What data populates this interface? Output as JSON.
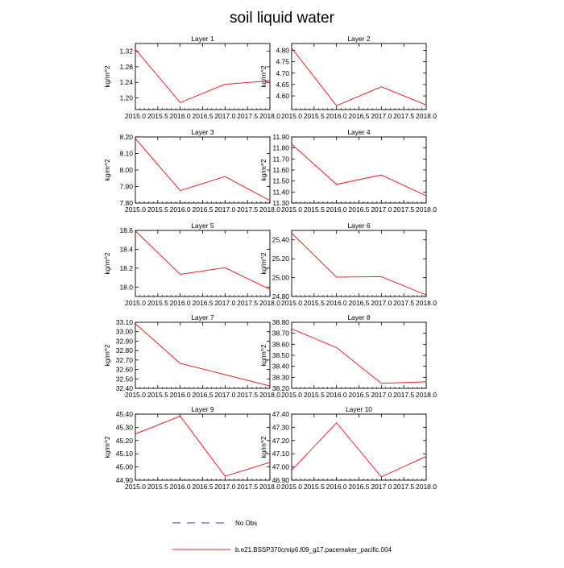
{
  "title": "soil liquid water",
  "colors": {
    "model_line": "#e8202a",
    "obs_line": "#3b3b8f",
    "axis": "#000000"
  },
  "legend": [
    {
      "label": "No Obs",
      "style": "dashed",
      "color": "#3b3b8f"
    },
    {
      "label": "b.e21.BSSP370cmip6.f09_g17.pacemaker_pacific.004",
      "style": "solid",
      "color": "#e8202a"
    }
  ],
  "chart_data": [
    {
      "type": "line",
      "title": "Layer 1",
      "ylabel": "kg/m^2",
      "x": [
        2015.0,
        2016.0,
        2017.0,
        2018.0
      ],
      "y": [
        1.325,
        1.188,
        1.235,
        1.244
      ],
      "xlim": [
        2015.0,
        2018.0
      ],
      "ylim": [
        1.17,
        1.34
      ],
      "xticks": [
        "2015.0",
        "2015.5",
        "2016.0",
        "2016.5",
        "2017.0",
        "2017.5",
        "2018.0"
      ],
      "yticks": [
        {
          "v": 1.2,
          "l": "1.20"
        },
        {
          "v": 1.24,
          "l": "1.24"
        },
        {
          "v": 1.28,
          "l": "1.28"
        },
        {
          "v": 1.32,
          "l": "1.32"
        }
      ]
    },
    {
      "type": "line",
      "title": "Layer 2",
      "ylabel": "kg/m^2",
      "x": [
        2015.0,
        2016.0,
        2017.0,
        2018.0
      ],
      "y": [
        4.81,
        4.557,
        4.64,
        4.56
      ],
      "xlim": [
        2015.0,
        2018.0
      ],
      "ylim": [
        4.54,
        4.83
      ],
      "xticks": [
        "2015.0",
        "2015.5",
        "2016.0",
        "2016.5",
        "2017.0",
        "2017.5",
        "2018.0"
      ],
      "yticks": [
        {
          "v": 4.6,
          "l": "4.60"
        },
        {
          "v": 4.65,
          "l": "4.65"
        },
        {
          "v": 4.7,
          "l": "4.70"
        },
        {
          "v": 4.75,
          "l": "4.75"
        },
        {
          "v": 4.8,
          "l": "4.80"
        }
      ]
    },
    {
      "type": "line",
      "title": "Layer 3",
      "ylabel": "kg/m^2",
      "x": [
        2015.0,
        2016.0,
        2017.0,
        2018.0
      ],
      "y": [
        8.19,
        7.875,
        7.96,
        7.815
      ],
      "xlim": [
        2015.0,
        2018.0
      ],
      "ylim": [
        7.8,
        8.2
      ],
      "xticks": [
        "2015.0",
        "2015.5",
        "2016.0",
        "2016.5",
        "2017.0",
        "2017.5",
        "2018.0"
      ],
      "yticks": [
        {
          "v": 7.8,
          "l": "7.80"
        },
        {
          "v": 7.9,
          "l": "7.90"
        },
        {
          "v": 8.0,
          "l": "8.00"
        },
        {
          "v": 8.1,
          "l": "8.10"
        },
        {
          "v": 8.2,
          "l": "8.20"
        }
      ]
    },
    {
      "type": "line",
      "title": "Layer 4",
      "ylabel": "kg/m^2",
      "x": [
        2015.0,
        2016.0,
        2017.0,
        2018.0
      ],
      "y": [
        11.835,
        11.47,
        11.555,
        11.365
      ],
      "xlim": [
        2015.0,
        2018.0
      ],
      "ylim": [
        11.3,
        11.9
      ],
      "xticks": [
        "2015.0",
        "2015.5",
        "2016.0",
        "2016.5",
        "2017.0",
        "2017.5",
        "2018.0"
      ],
      "yticks": [
        {
          "v": 11.3,
          "l": "11.30"
        },
        {
          "v": 11.4,
          "l": "11.40"
        },
        {
          "v": 11.5,
          "l": "11.50"
        },
        {
          "v": 11.6,
          "l": "11.60"
        },
        {
          "v": 11.7,
          "l": "11.70"
        },
        {
          "v": 11.8,
          "l": "11.80"
        },
        {
          "v": 11.9,
          "l": "11.90"
        }
      ]
    },
    {
      "type": "line",
      "title": "Layer 5",
      "ylabel": "kg/m^2",
      "x": [
        2015.0,
        2016.0,
        2017.0,
        2018.0
      ],
      "y": [
        18.595,
        18.135,
        18.205,
        17.975
      ],
      "xlim": [
        2015.0,
        2018.0
      ],
      "ylim": [
        17.9,
        18.6
      ],
      "xticks": [
        "2015.0",
        "2015.5",
        "2016.0",
        "2016.5",
        "2017.0",
        "2017.5",
        "2018.0"
      ],
      "yticks": [
        {
          "v": 18.0,
          "l": "18.0"
        },
        {
          "v": 18.2,
          "l": "18.2"
        },
        {
          "v": 18.4,
          "l": "18.4"
        },
        {
          "v": 18.6,
          "l": "18.6"
        }
      ]
    },
    {
      "type": "line",
      "title": "Layer 6",
      "ylabel": "kg/m^2",
      "x": [
        2015.0,
        2016.0,
        2017.0,
        2018.0
      ],
      "y": [
        25.47,
        25.005,
        25.01,
        24.815
      ],
      "xlim": [
        2015.0,
        2018.0
      ],
      "ylim": [
        24.8,
        25.5
      ],
      "xticks": [
        "2015.0",
        "2015.5",
        "2016.0",
        "2016.5",
        "2017.0",
        "2017.5",
        "2018.0"
      ],
      "yticks": [
        {
          "v": 24.8,
          "l": "24.80"
        },
        {
          "v": 25.0,
          "l": "25.00"
        },
        {
          "v": 25.2,
          "l": "25.20"
        },
        {
          "v": 25.4,
          "l": "25.40"
        }
      ]
    },
    {
      "type": "line",
      "title": "Layer 7",
      "ylabel": "kg/m^2",
      "x": [
        2015.0,
        2016.0,
        2017.0,
        2018.0
      ],
      "y": [
        33.085,
        32.665,
        32.545,
        32.425
      ],
      "xlim": [
        2015.0,
        2018.0
      ],
      "ylim": [
        32.4,
        33.1
      ],
      "xticks": [
        "2015.0",
        "2015.5",
        "2016.0",
        "2016.5",
        "2017.0",
        "2017.5",
        "2018.0"
      ],
      "yticks": [
        {
          "v": 32.4,
          "l": "32.40"
        },
        {
          "v": 32.5,
          "l": "32.50"
        },
        {
          "v": 32.6,
          "l": "32.60"
        },
        {
          "v": 32.7,
          "l": "32.70"
        },
        {
          "v": 32.8,
          "l": "32.80"
        },
        {
          "v": 32.9,
          "l": "32.90"
        },
        {
          "v": 33.0,
          "l": "33.00"
        },
        {
          "v": 33.1,
          "l": "33.10"
        }
      ]
    },
    {
      "type": "line",
      "title": "Layer 8",
      "ylabel": "kg/m^2",
      "x": [
        2015.0,
        2016.0,
        2017.0,
        2018.0
      ],
      "y": [
        38.74,
        38.57,
        38.245,
        38.26
      ],
      "xlim": [
        2015.0,
        2018.0
      ],
      "ylim": [
        38.2,
        38.8
      ],
      "xticks": [
        "2015.0",
        "2015.5",
        "2016.0",
        "2016.5",
        "2017.0",
        "2017.5",
        "2018.0"
      ],
      "yticks": [
        {
          "v": 38.2,
          "l": "38.20"
        },
        {
          "v": 38.3,
          "l": "38.30"
        },
        {
          "v": 38.4,
          "l": "38.40"
        },
        {
          "v": 38.5,
          "l": "38.50"
        },
        {
          "v": 38.6,
          "l": "38.60"
        },
        {
          "v": 38.7,
          "l": "38.70"
        },
        {
          "v": 38.8,
          "l": "38.80"
        }
      ]
    },
    {
      "type": "line",
      "title": "Layer 9",
      "ylabel": "kg/m^2",
      "x": [
        2015.0,
        2016.0,
        2017.0,
        2018.0
      ],
      "y": [
        45.25,
        45.385,
        44.93,
        45.035
      ],
      "xlim": [
        2015.0,
        2018.0
      ],
      "ylim": [
        44.9,
        45.4
      ],
      "xticks": [
        "2015.0",
        "2015.5",
        "2016.0",
        "2016.5",
        "2017.0",
        "2017.5",
        "2018.0"
      ],
      "yticks": [
        {
          "v": 44.9,
          "l": "44.90"
        },
        {
          "v": 45.0,
          "l": "45.00"
        },
        {
          "v": 45.1,
          "l": "45.10"
        },
        {
          "v": 45.2,
          "l": "45.20"
        },
        {
          "v": 45.3,
          "l": "45.30"
        },
        {
          "v": 45.4,
          "l": "45.40"
        }
      ]
    },
    {
      "type": "line",
      "title": "Layer 10",
      "ylabel": "kg/m^2",
      "x": [
        2015.0,
        2016.0,
        2017.0,
        2018.0
      ],
      "y": [
        46.975,
        47.335,
        46.925,
        47.08
      ],
      "xlim": [
        2015.0,
        2018.0
      ],
      "ylim": [
        46.9,
        47.4
      ],
      "xticks": [
        "2015.0",
        "2015.5",
        "2016.0",
        "2016.5",
        "2017.0",
        "2017.5",
        "2018.0"
      ],
      "yticks": [
        {
          "v": 46.9,
          "l": "46.90"
        },
        {
          "v": 47.0,
          "l": "47.00"
        },
        {
          "v": 47.1,
          "l": "47.10"
        },
        {
          "v": 47.2,
          "l": "47.20"
        },
        {
          "v": 47.3,
          "l": "47.30"
        },
        {
          "v": 47.4,
          "l": "47.40"
        }
      ]
    }
  ]
}
